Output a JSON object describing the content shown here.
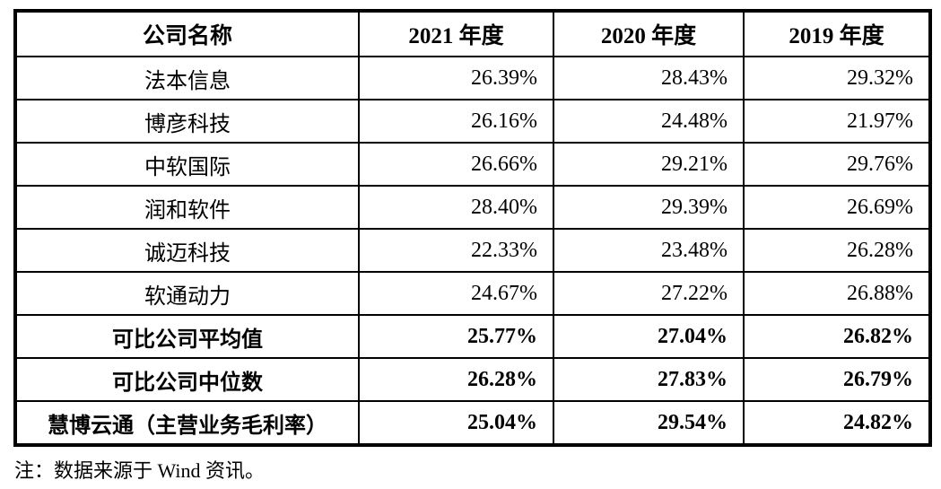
{
  "table": {
    "columns": [
      "公司名称",
      "2021 年度",
      "2020 年度",
      "2019 年度"
    ],
    "rows": [
      {
        "name": "法本信息",
        "values": [
          "26.39%",
          "28.43%",
          "29.32%"
        ]
      },
      {
        "name": "博彦科技",
        "values": [
          "26.16%",
          "24.48%",
          "21.97%"
        ]
      },
      {
        "name": "中软国际",
        "values": [
          "26.66%",
          "29.21%",
          "29.76%"
        ]
      },
      {
        "name": "润和软件",
        "values": [
          "28.40%",
          "29.39%",
          "26.69%"
        ]
      },
      {
        "name": "诚迈科技",
        "values": [
          "22.33%",
          "23.48%",
          "26.28%"
        ]
      },
      {
        "name": "软通动力",
        "values": [
          "24.67%",
          "27.22%",
          "26.88%"
        ]
      },
      {
        "name": "可比公司平均值",
        "values": [
          "25.77%",
          "27.04%",
          "26.82%"
        ]
      },
      {
        "name": "可比公司中位数",
        "values": [
          "26.28%",
          "27.83%",
          "26.79%"
        ]
      },
      {
        "name": "慧博云通（主营业务毛利率）",
        "values": [
          "25.04%",
          "29.54%",
          "24.82%"
        ]
      }
    ]
  },
  "note": "注：数据来源于 Wind 资讯。"
}
